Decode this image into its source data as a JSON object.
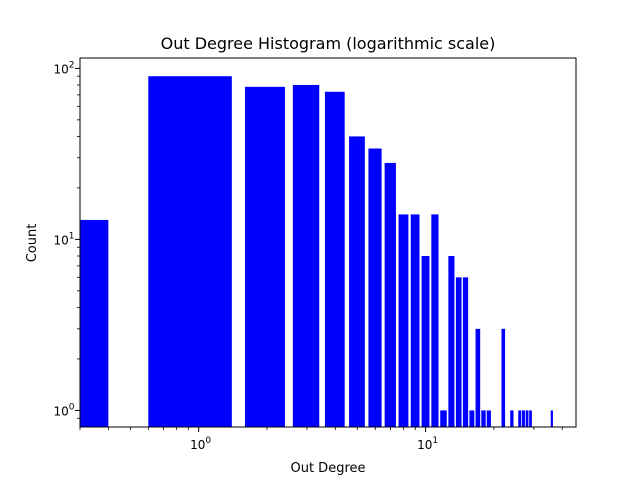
{
  "chart_data": {
    "type": "bar",
    "title": "Out Degree Histogram (logarithmic scale)",
    "xlabel": "Out Degree",
    "ylabel": "Count",
    "xscale": "log",
    "yscale": "log",
    "xlim": [
      0.3,
      46
    ],
    "ylim": [
      0.8,
      115
    ],
    "grid": false,
    "legend": "none",
    "bar_color": "#0000ff",
    "x_ticks": [
      {
        "value": 1,
        "base": "10",
        "exp": "0"
      },
      {
        "value": 10,
        "base": "10",
        "exp": "1"
      }
    ],
    "y_ticks": [
      {
        "value": 1,
        "base": "10",
        "exp": "0"
      },
      {
        "value": 10,
        "base": "10",
        "exp": "1"
      },
      {
        "value": 100,
        "base": "10",
        "exp": "2"
      }
    ],
    "bars": [
      {
        "x": 0,
        "count": 13
      },
      {
        "x": 1,
        "count": 90
      },
      {
        "x": 2,
        "count": 78
      },
      {
        "x": 3,
        "count": 80
      },
      {
        "x": 4,
        "count": 73
      },
      {
        "x": 5,
        "count": 40
      },
      {
        "x": 6,
        "count": 34
      },
      {
        "x": 7,
        "count": 28
      },
      {
        "x": 8,
        "count": 14
      },
      {
        "x": 9,
        "count": 14
      },
      {
        "x": 10,
        "count": 8
      },
      {
        "x": 11,
        "count": 14
      },
      {
        "x": 12,
        "count": 1
      },
      {
        "x": 13,
        "count": 8
      },
      {
        "x": 14,
        "count": 6
      },
      {
        "x": 15,
        "count": 6
      },
      {
        "x": 16,
        "count": 1
      },
      {
        "x": 17,
        "count": 3
      },
      {
        "x": 18,
        "count": 1
      },
      {
        "x": 19,
        "count": 1
      },
      {
        "x": 22,
        "count": 3
      },
      {
        "x": 24,
        "count": 1
      },
      {
        "x": 26,
        "count": 1
      },
      {
        "x": 27,
        "count": 1
      },
      {
        "x": 28,
        "count": 1
      },
      {
        "x": 29,
        "count": 1
      },
      {
        "x": 36,
        "count": 1
      }
    ]
  }
}
